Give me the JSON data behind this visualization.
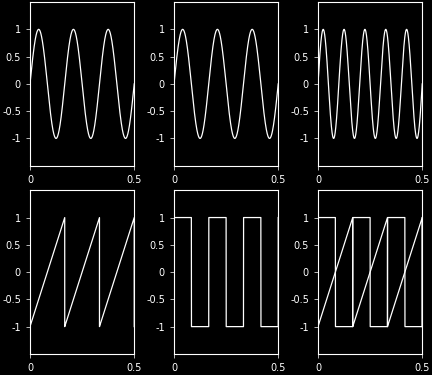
{
  "D": 0.5,
  "f1": 6,
  "f2": 6,
  "f3": 10,
  "saw_periods": 3,
  "sq_periods": 3,
  "background_color": "#000000",
  "line_color": "#ffffff",
  "text_color": "#ffffff",
  "ylim": [
    -1.5,
    1.5
  ],
  "xlim": [
    0,
    0.5
  ],
  "fig_facecolor": "#000000",
  "axes_facecolor": "#000000",
  "yticks": [
    -1,
    -0.5,
    0,
    0.5,
    1
  ],
  "ytick_labels": [
    "-1",
    "-0.5",
    "0",
    "0.5",
    "1"
  ],
  "xticks": [
    0,
    0.5
  ],
  "xtick_labels": [
    "0",
    "0.5"
  ],
  "tick_fontsize": 7,
  "linewidth": 0.9
}
